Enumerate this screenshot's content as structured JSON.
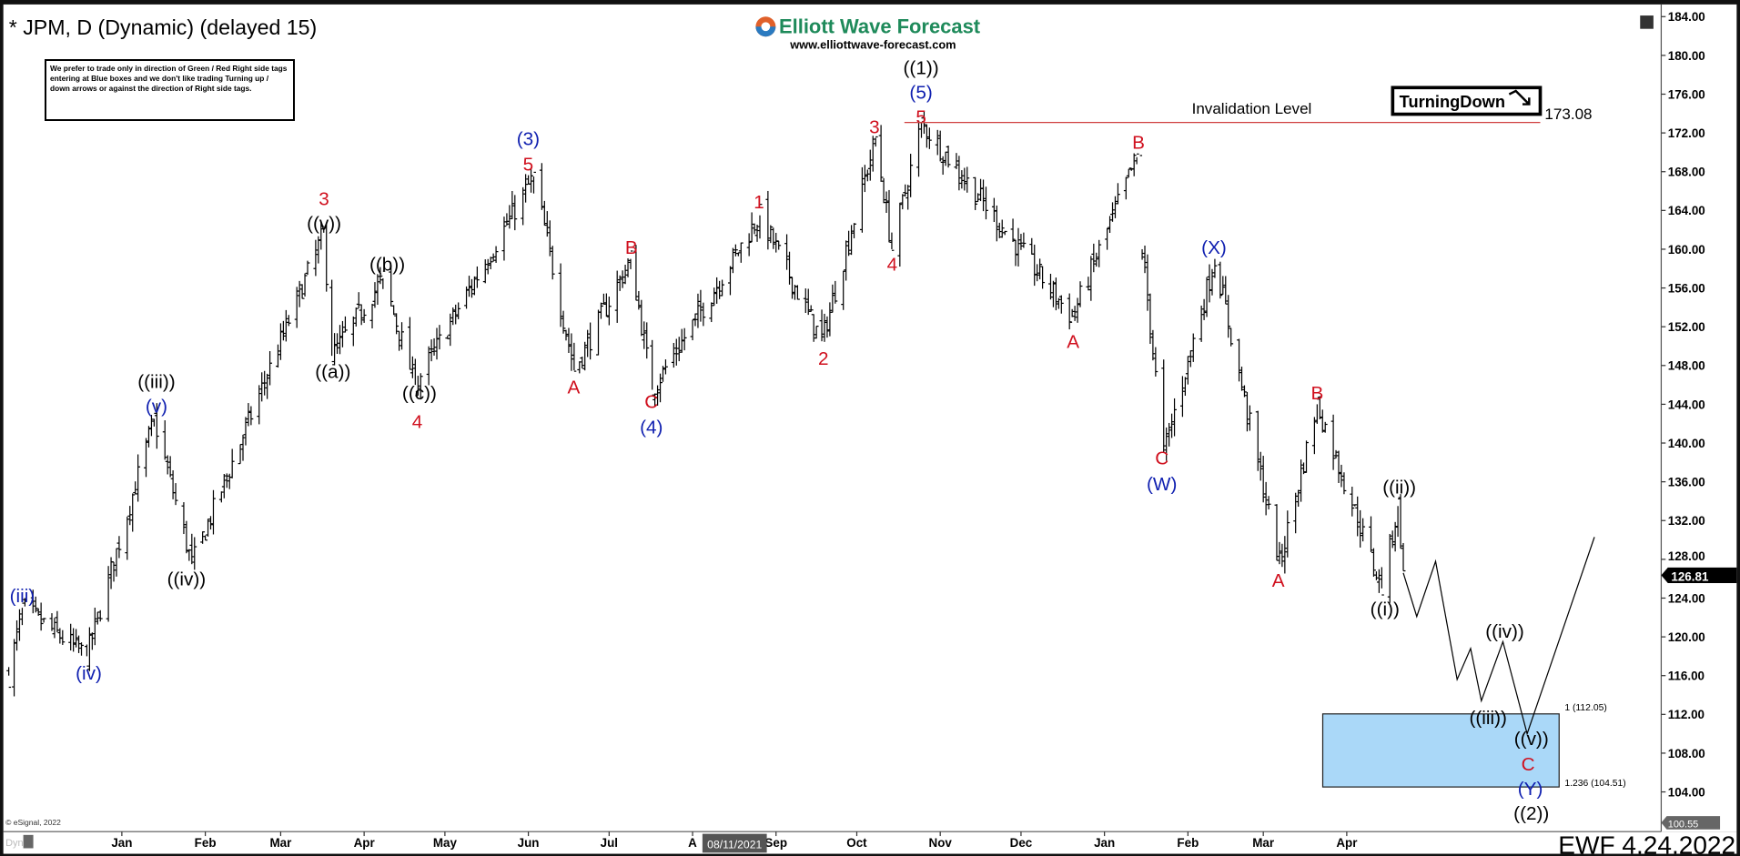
{
  "header": {
    "title": "* JPM, D (Dynamic) (delayed 15)",
    "logo_name": "Elliott Wave Forecast",
    "logo_url": "www.elliottwave-forecast.com",
    "disclaimer": "We prefer to trade only in direction of Green / Red Right side tags entering at Blue boxes and we don't like trading Turning up / down arrows or against the direction of Right side tags."
  },
  "footer": {
    "copyright": "© eSignal, 2022",
    "dyn": "Dyn",
    "stamp": "EWF 4.24.2022",
    "cursor_date": "08/11/2021"
  },
  "colors": {
    "red": "#d0101e",
    "blue": "#1020b0",
    "black": "#000000",
    "box_fill": "#aad8f8",
    "invalidation": "#d04040"
  },
  "chart_data": {
    "type": "ohlc",
    "symbol": "JPM",
    "interval": "D",
    "ylim": [
      100.55,
      184.0
    ],
    "y_ticks": [
      "184.00",
      "180.00",
      "176.00",
      "172.00",
      "168.00",
      "164.00",
      "160.00",
      "156.00",
      "152.00",
      "148.00",
      "144.00",
      "140.00",
      "136.00",
      "132.00",
      "128.00",
      "124.00",
      "120.00",
      "116.00",
      "112.00",
      "108.00",
      "104.00"
    ],
    "x_ticks": [
      {
        "label": "Jan",
        "date": "2021-01-01"
      },
      {
        "label": "Feb",
        "date": "2021-02-01"
      },
      {
        "label": "Mar",
        "date": "2021-03-01"
      },
      {
        "label": "Apr",
        "date": "2021-04-01"
      },
      {
        "label": "May",
        "date": "2021-05-01"
      },
      {
        "label": "Jun",
        "date": "2021-06-01"
      },
      {
        "label": "Jul",
        "date": "2021-07-01"
      },
      {
        "label": "A",
        "date": "2021-08-01"
      },
      {
        "label": "Sep",
        "date": "2021-09-01"
      },
      {
        "label": "Oct",
        "date": "2021-10-01"
      },
      {
        "label": "Nov",
        "date": "2021-11-01"
      },
      {
        "label": "Dec",
        "date": "2021-12-01"
      },
      {
        "label": "Jan",
        "date": "2022-01-01"
      },
      {
        "label": "Feb",
        "date": "2022-02-01"
      },
      {
        "label": "Mar",
        "date": "2022-03-01"
      },
      {
        "label": "Apr",
        "date": "2022-04-01"
      }
    ],
    "last_price": "126.81",
    "min_price_marker": "100.55",
    "price_pivots": [
      [
        "2020-11-20",
        116
      ],
      [
        "2020-11-25",
        123
      ],
      [
        "2020-12-19",
        118
      ],
      [
        "2021-01-13",
        142.5
      ],
      [
        "2021-01-27",
        127.5
      ],
      [
        "2021-03-17",
        161.7
      ],
      [
        "2021-03-20",
        149
      ],
      [
        "2021-04-08",
        157
      ],
      [
        "2021-04-20",
        146
      ],
      [
        "2021-06-03",
        167.5
      ],
      [
        "2021-06-18",
        147.5
      ],
      [
        "2021-07-09",
        159
      ],
      [
        "2021-07-17",
        145.5
      ],
      [
        "2021-08-26",
        163.5
      ],
      [
        "2021-09-18",
        150.5
      ],
      [
        "2021-10-08",
        171.5
      ],
      [
        "2021-10-14",
        160
      ],
      [
        "2021-10-25",
        173
      ],
      [
        "2021-12-20",
        153
      ],
      [
        "2022-01-13",
        169.5
      ],
      [
        "2022-01-15",
        160
      ],
      [
        "2022-01-23",
        139
      ],
      [
        "2022-02-11",
        159
      ],
      [
        "2022-03-07",
        127.5
      ],
      [
        "2022-03-21",
        144
      ],
      [
        "2022-04-14",
        125
      ],
      [
        "2022-04-20",
        133.5
      ],
      [
        "2022-04-22",
        126.81
      ]
    ],
    "projection": [
      [
        "2022-04-22",
        126.6
      ],
      [
        "2022-04-27",
        122.1
      ],
      [
        "2022-05-04",
        127.8
      ],
      [
        "2022-05-12",
        115.6
      ],
      [
        "2022-05-17",
        118.8
      ],
      [
        "2022-05-21",
        113.4
      ],
      [
        "2022-05-29",
        119.5
      ],
      [
        "2022-06-07",
        110.0
      ],
      [
        "2022-07-02",
        130.3
      ]
    ],
    "invalidation": {
      "label": "Invalidation Level",
      "price": 173.08,
      "value_label": "173.08"
    },
    "signal_tag": "TurningDown",
    "target_box": {
      "top": 112.05,
      "bottom": 104.51,
      "top_label": "1 (112.05)",
      "bottom_label": "1.236 (104.51)"
    },
    "wave_labels": [
      {
        "text": "(iii)",
        "color": "blue"
      },
      {
        "text": "(iv)",
        "color": "blue"
      },
      {
        "text": "((iii))",
        "color": "black"
      },
      {
        "text": "(v)",
        "color": "blue"
      },
      {
        "text": "((iv))",
        "color": "black"
      },
      {
        "text": "3",
        "color": "red"
      },
      {
        "text": "((v))",
        "color": "black"
      },
      {
        "text": "((a))",
        "color": "black"
      },
      {
        "text": "((b))",
        "color": "black"
      },
      {
        "text": "((c))",
        "color": "black"
      },
      {
        "text": "4",
        "color": "red"
      },
      {
        "text": "(3)",
        "color": "blue"
      },
      {
        "text": "5",
        "color": "red"
      },
      {
        "text": "A",
        "color": "red"
      },
      {
        "text": "B",
        "color": "red"
      },
      {
        "text": "C",
        "color": "red"
      },
      {
        "text": "(4)",
        "color": "blue"
      },
      {
        "text": "1",
        "color": "red"
      },
      {
        "text": "2",
        "color": "red"
      },
      {
        "text": "3",
        "color": "red"
      },
      {
        "text": "4",
        "color": "red"
      },
      {
        "text": "((1))",
        "color": "black"
      },
      {
        "text": "(5)",
        "color": "blue"
      },
      {
        "text": "5",
        "color": "red"
      },
      {
        "text": "A",
        "color": "red"
      },
      {
        "text": "B",
        "color": "red"
      },
      {
        "text": "C",
        "color": "red"
      },
      {
        "text": "(W)",
        "color": "blue"
      },
      {
        "text": "(X)",
        "color": "blue"
      },
      {
        "text": "A",
        "color": "red"
      },
      {
        "text": "B",
        "color": "red"
      },
      {
        "text": "((i))",
        "color": "black"
      },
      {
        "text": "((ii))",
        "color": "black"
      },
      {
        "text": "((iii))",
        "color": "black"
      },
      {
        "text": "((iv))",
        "color": "black"
      },
      {
        "text": "((v))",
        "color": "black"
      },
      {
        "text": "C",
        "color": "red"
      },
      {
        "text": "(Y)",
        "color": "blue"
      },
      {
        "text": "((2))",
        "color": "black"
      }
    ]
  }
}
